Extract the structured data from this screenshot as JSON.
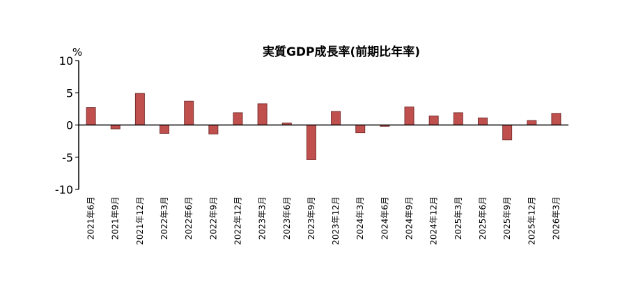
{
  "chart_data": {
    "type": "bar",
    "title": "実質GDP成長率(前期比年率)",
    "unit_label": "%",
    "xlabel": "",
    "ylabel": "",
    "ylim": [
      -10,
      10
    ],
    "yticks": [
      10,
      5,
      0,
      -5,
      -10
    ],
    "categories": [
      "2021年6月",
      "2021年9月",
      "2021年12月",
      "2022年3月",
      "2022年6月",
      "2022年9月",
      "2022年12月",
      "2023年3月",
      "2023年6月",
      "2023年9月",
      "2023年12月",
      "2024年3月",
      "2024年6月",
      "2024年9月",
      "2024年12月",
      "2025年3月",
      "2025年6月",
      "2025年9月",
      "2025年12月",
      "2026年3月"
    ],
    "values": [
      2.7,
      -0.6,
      4.9,
      -1.3,
      3.7,
      -1.4,
      1.9,
      3.3,
      0.3,
      -5.4,
      2.1,
      -1.2,
      -0.2,
      2.8,
      1.4,
      1.9,
      1.1,
      -2.3,
      0.7,
      1.8
    ],
    "colors": {
      "bar_fill": "#c0504d",
      "bar_stroke": "#7a3030",
      "axis": "#000000"
    },
    "grid": false,
    "legend": "none"
  }
}
